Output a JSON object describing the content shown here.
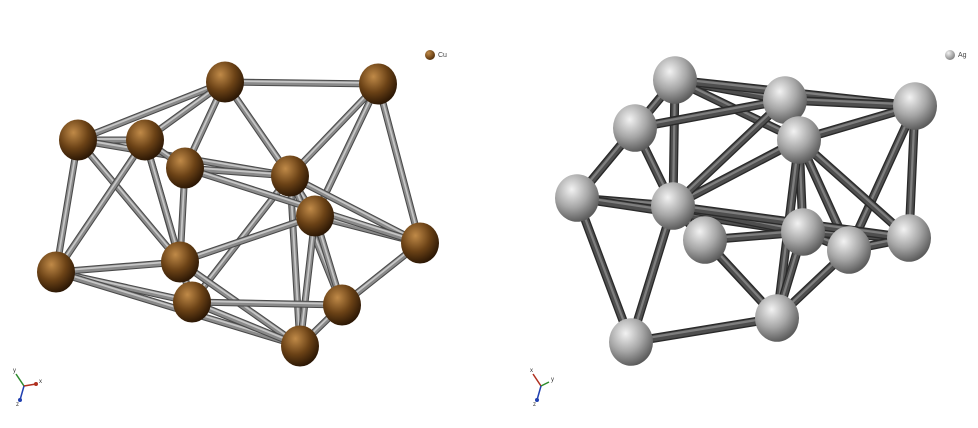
{
  "panels": [
    {
      "legend": {
        "label": "Cu",
        "color": "#6b4216"
      },
      "axes": {
        "x": "x",
        "y": "y",
        "z": "z"
      },
      "atom_colors": {
        "light": "#c08a48",
        "base": "#6b4216",
        "dark": "#2a1604"
      },
      "bond_colors": {
        "light": "#d6d6d6",
        "mid": "#8a8a8a",
        "dark": "#4a4a4a"
      }
    },
    {
      "legend": {
        "label": "Ag",
        "color": "#9a9a9a"
      },
      "axes": {
        "x": "x",
        "y": "y",
        "z": "z"
      },
      "atom_colors": {
        "light": "#f2f2f2",
        "base": "#a6a6a6",
        "dark": "#5a5a5a"
      },
      "bond_colors": {
        "light": "#8a8a8a",
        "mid": "#4e4e4e",
        "dark": "#2a2a2a"
      }
    }
  ]
}
